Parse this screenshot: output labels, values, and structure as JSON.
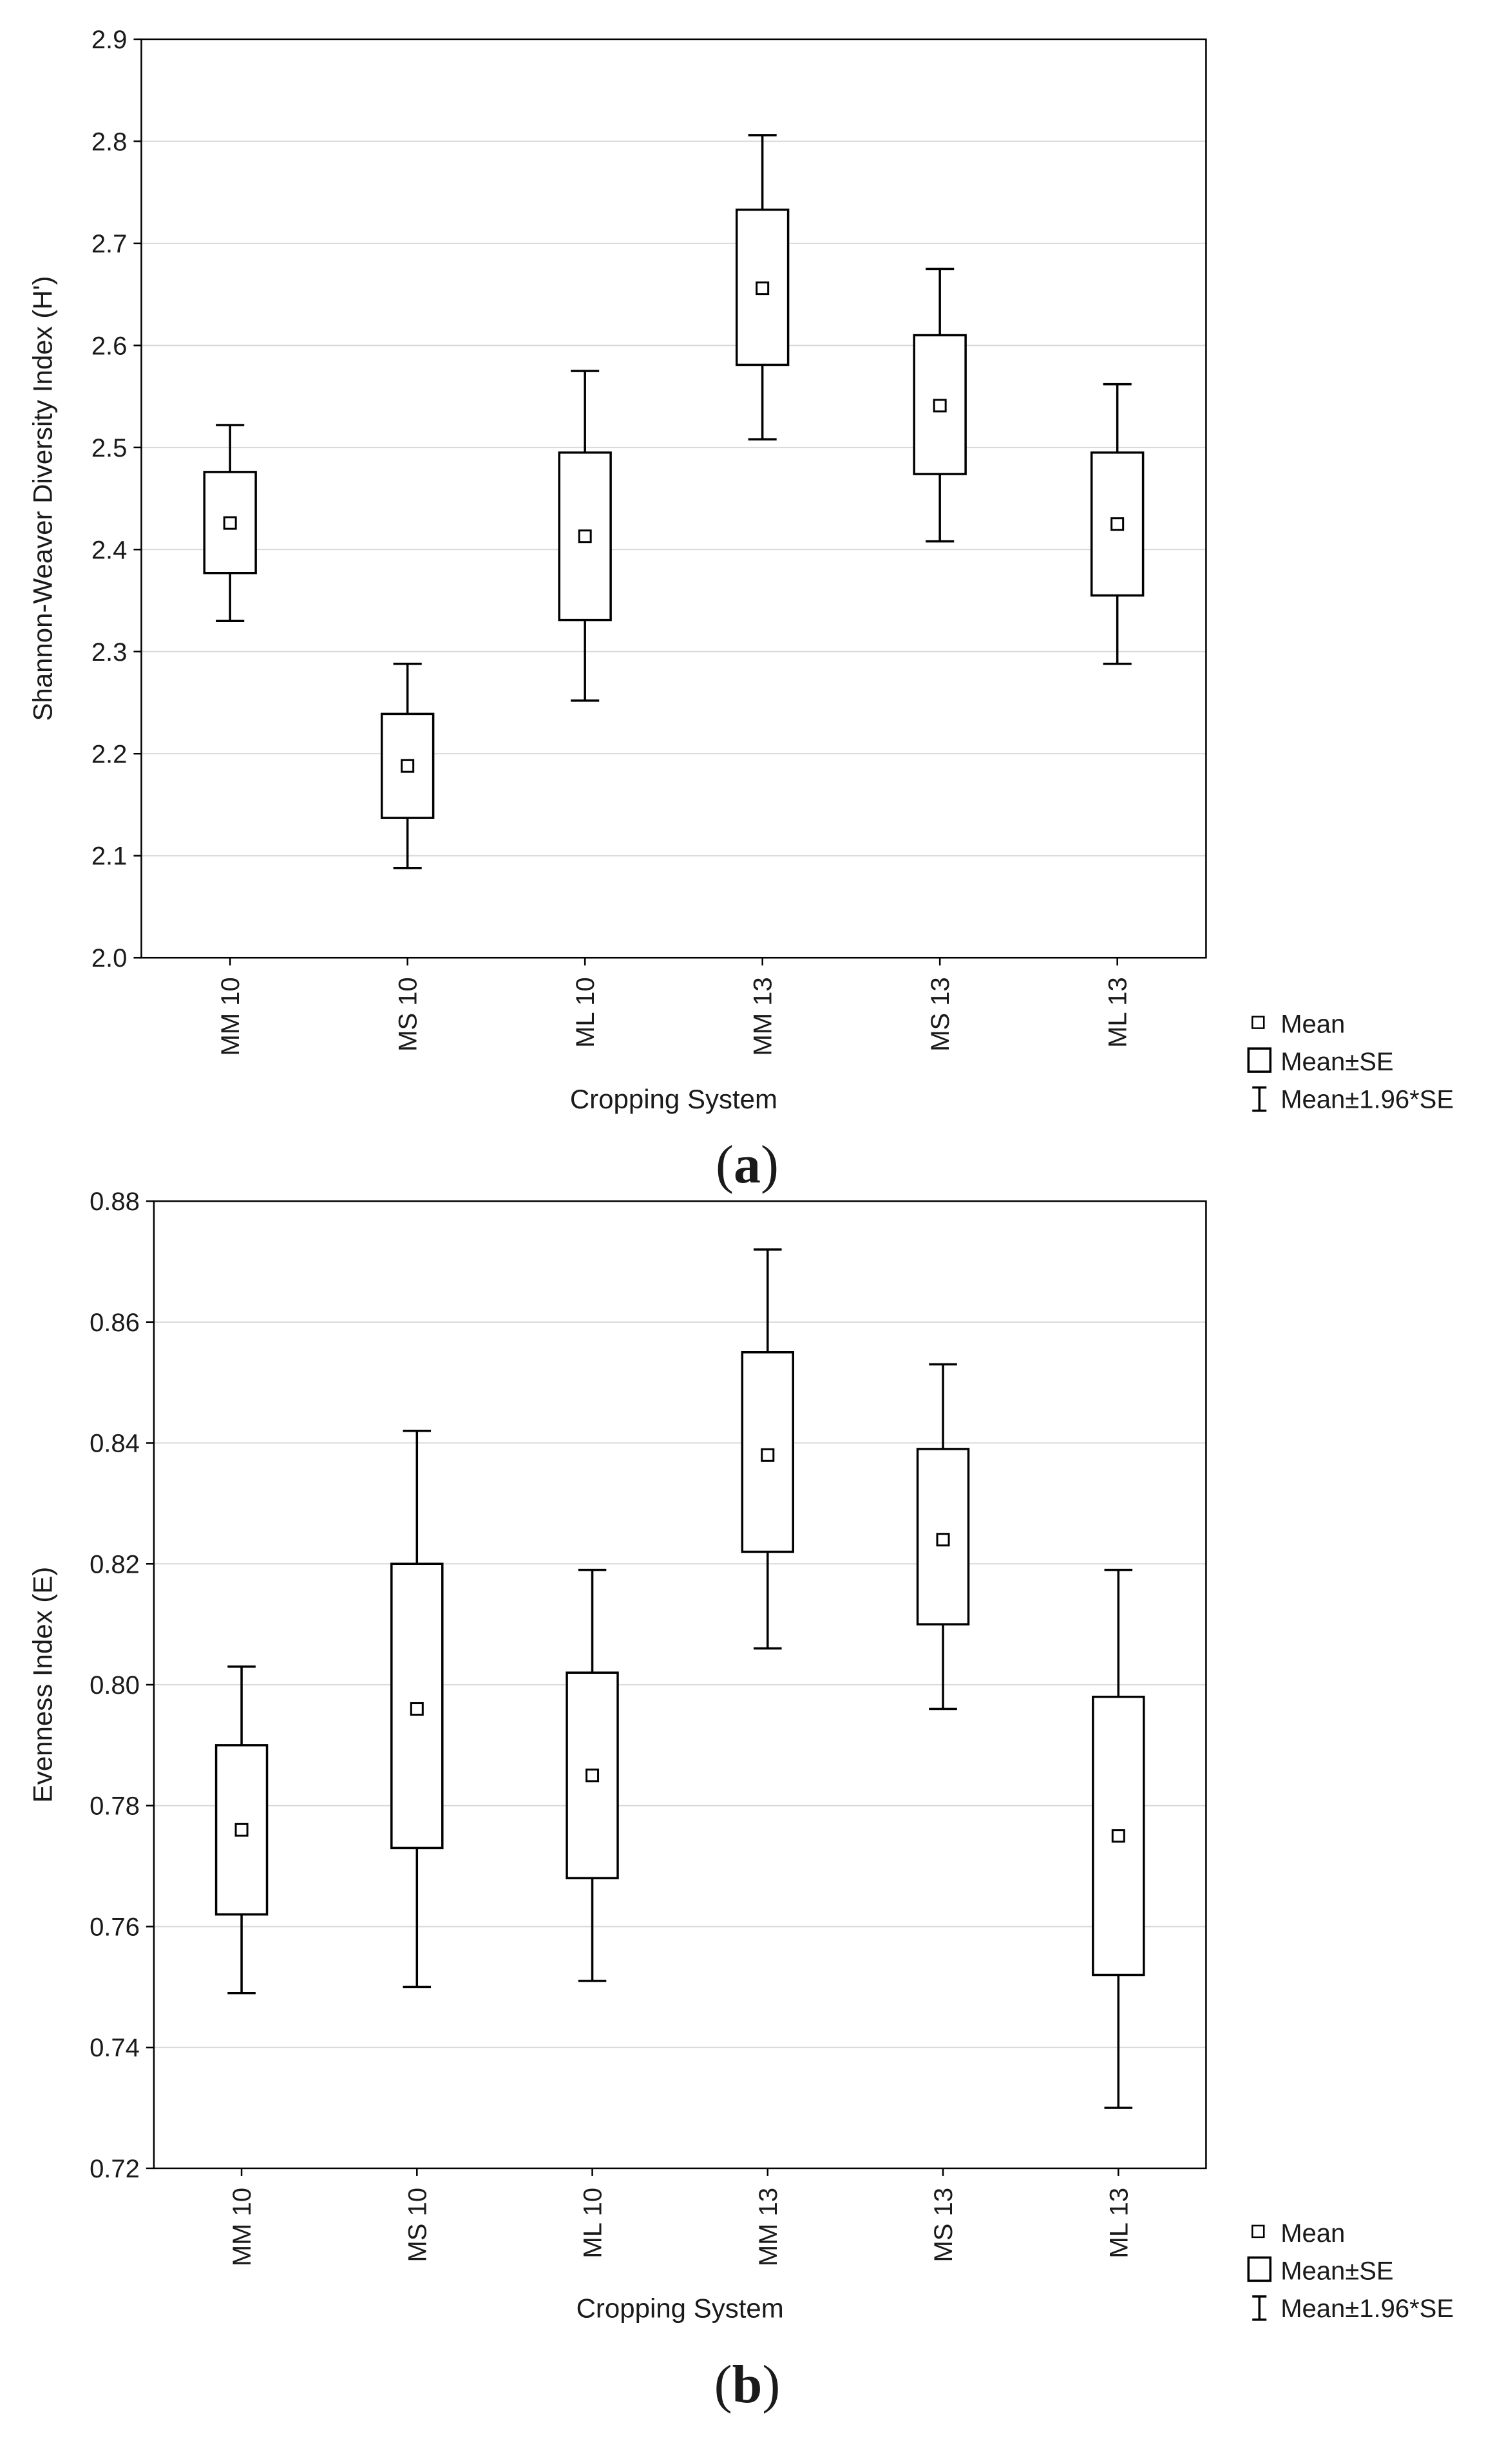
{
  "chart_data": [
    {
      "type": "box",
      "panel_label": "a",
      "xlabel": "Cropping System",
      "ylabel": "Shannon-Weaver Diversity Index (H')",
      "ylim": [
        2.0,
        2.9
      ],
      "yticks": [
        "2.0",
        "2.1",
        "2.2",
        "2.3",
        "2.4",
        "2.5",
        "2.6",
        "2.7",
        "2.8",
        "2.9"
      ],
      "grid": true,
      "categories": [
        "MM 10",
        "MS 10",
        "ML 10",
        "MM 13",
        "MS 13",
        "ML 13"
      ],
      "series": [
        {
          "name": "Mean",
          "values": [
            2.426,
            2.188,
            2.413,
            2.656,
            2.541,
            2.425
          ]
        },
        {
          "name": "Mean-SE",
          "values": [
            2.377,
            2.137,
            2.331,
            2.581,
            2.474,
            2.355
          ]
        },
        {
          "name": "Mean+SE",
          "values": [
            2.476,
            2.239,
            2.495,
            2.733,
            2.61,
            2.495
          ]
        },
        {
          "name": "Mean-1.96*SE",
          "values": [
            2.33,
            2.088,
            2.252,
            2.508,
            2.408,
            2.288
          ]
        },
        {
          "name": "Mean+1.96*SE",
          "values": [
            2.522,
            2.288,
            2.575,
            2.806,
            2.675,
            2.562
          ]
        }
      ],
      "legend": [
        "Mean",
        "Mean±SE",
        "Mean±1.96*SE"
      ]
    },
    {
      "type": "box",
      "panel_label": "b",
      "xlabel": "Cropping System",
      "ylabel": "Evenness Index (E)",
      "ylim": [
        0.72,
        0.88
      ],
      "yticks": [
        "0.72",
        "0.74",
        "0.76",
        "0.78",
        "0.80",
        "0.82",
        "0.84",
        "0.86",
        "0.88"
      ],
      "grid": true,
      "categories": [
        "MM 10",
        "MS 10",
        "ML 10",
        "MM 13",
        "MS 13",
        "ML 13"
      ],
      "series": [
        {
          "name": "Mean",
          "values": [
            0.776,
            0.796,
            0.785,
            0.838,
            0.824,
            0.775
          ]
        },
        {
          "name": "Mean-SE",
          "values": [
            0.762,
            0.773,
            0.768,
            0.822,
            0.81,
            0.752
          ]
        },
        {
          "name": "Mean+SE",
          "values": [
            0.79,
            0.82,
            0.802,
            0.855,
            0.839,
            0.798
          ]
        },
        {
          "name": "Mean-1.96*SE",
          "values": [
            0.749,
            0.75,
            0.751,
            0.806,
            0.796,
            0.73
          ]
        },
        {
          "name": "Mean+1.96*SE",
          "values": [
            0.803,
            0.842,
            0.819,
            0.872,
            0.853,
            0.819
          ]
        }
      ],
      "legend": [
        "Mean",
        "Mean±SE",
        "Mean±1.96*SE"
      ]
    }
  ]
}
